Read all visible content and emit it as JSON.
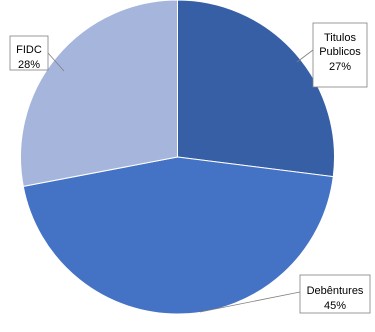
{
  "chart_data": {
    "type": "pie",
    "title": "",
    "legend": "none",
    "slices": [
      {
        "label_lines": [
          "Titulos",
          "Publicos"
        ],
        "value": 27,
        "percent_label": "27%",
        "color": "#365fa6"
      },
      {
        "label_lines": [
          "Debêntures"
        ],
        "value": 45,
        "percent_label": "45%",
        "color": "#4472c4"
      },
      {
        "label_lines": [
          "FIDC"
        ],
        "value": 28,
        "percent_label": "28%",
        "color": "#a6b5dc"
      }
    ]
  }
}
